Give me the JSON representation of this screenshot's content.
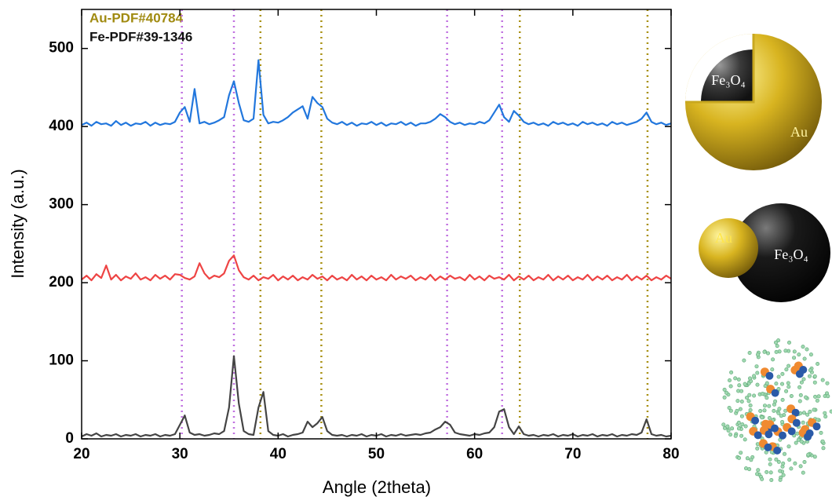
{
  "chart_data": {
    "type": "line",
    "xlabel": "Angle (2theta)",
    "ylabel": "Intensity (a.u.)",
    "xlim": [
      20,
      80
    ],
    "xticks": [
      20,
      30,
      40,
      50,
      60,
      70,
      80
    ],
    "ylim": [
      0,
      550
    ],
    "yticks": [
      0,
      100,
      200,
      300,
      400,
      500
    ],
    "x": [
      20,
      20.5,
      21,
      21.5,
      22,
      22.5,
      23,
      23.5,
      24,
      24.5,
      25,
      25.5,
      26,
      26.5,
      27,
      27.5,
      28,
      28.5,
      29,
      29.5,
      30,
      30.5,
      31,
      31.5,
      32,
      32.5,
      33,
      33.5,
      34,
      34.5,
      35,
      35.5,
      36,
      36.5,
      37,
      37.5,
      38,
      38.5,
      39,
      39.5,
      40,
      40.5,
      41,
      41.5,
      42,
      42.5,
      43,
      43.5,
      44,
      44.5,
      45,
      45.5,
      46,
      46.5,
      47,
      47.5,
      48,
      48.5,
      49,
      49.5,
      50,
      50.5,
      51,
      51.5,
      52,
      52.5,
      53,
      53.5,
      54,
      54.5,
      55,
      55.5,
      56,
      56.5,
      57,
      57.5,
      58,
      58.5,
      59,
      59.5,
      60,
      60.5,
      61,
      61.5,
      62,
      62.5,
      63,
      63.5,
      64,
      64.5,
      65,
      65.5,
      66,
      66.5,
      67,
      67.5,
      68,
      68.5,
      69,
      69.5,
      70,
      70.5,
      71,
      71.5,
      72,
      72.5,
      73,
      73.5,
      74,
      74.5,
      75,
      75.5,
      76,
      76.5,
      77,
      77.5,
      78,
      78.5,
      79,
      79.5,
      80
    ],
    "series": [
      {
        "color": "#444444",
        "values": [
          3,
          6,
          4,
          7,
          3,
          5,
          4,
          6,
          3,
          5,
          4,
          6,
          3,
          5,
          4,
          6,
          3,
          5,
          4,
          6,
          18,
          30,
          8,
          5,
          6,
          4,
          5,
          7,
          6,
          10,
          40,
          106,
          45,
          10,
          6,
          5,
          40,
          60,
          10,
          5,
          4,
          6,
          3,
          5,
          6,
          8,
          22,
          15,
          20,
          28,
          10,
          5,
          4,
          5,
          3,
          5,
          4,
          6,
          3,
          5,
          4,
          6,
          3,
          5,
          4,
          6,
          4,
          5,
          6,
          5,
          7,
          8,
          12,
          15,
          22,
          18,
          8,
          6,
          5,
          4,
          6,
          5,
          7,
          8,
          15,
          35,
          38,
          15,
          6,
          16,
          6,
          4,
          5,
          3,
          5,
          4,
          6,
          3,
          5,
          4,
          6,
          3,
          5,
          4,
          6,
          3,
          5,
          4,
          6,
          3,
          5,
          4,
          6,
          5,
          8,
          25,
          6,
          4,
          5,
          3,
          4
        ]
      },
      {
        "color": "#ee4444",
        "values": [
          204,
          209,
          203,
          211,
          206,
          222,
          204,
          210,
          203,
          208,
          205,
          212,
          204,
          207,
          203,
          210,
          205,
          209,
          204,
          211,
          210,
          206,
          204,
          208,
          225,
          212,
          205,
          209,
          207,
          212,
          228,
          235,
          216,
          207,
          204,
          209,
          203,
          207,
          205,
          210,
          203,
          208,
          204,
          209,
          203,
          207,
          204,
          210,
          205,
          208,
          203,
          209,
          204,
          207,
          203,
          210,
          204,
          208,
          203,
          209,
          204,
          207,
          203,
          210,
          204,
          208,
          205,
          209,
          203,
          207,
          204,
          210,
          203,
          208,
          204,
          209,
          205,
          207,
          203,
          210,
          204,
          208,
          203,
          209,
          205,
          207,
          204,
          210,
          203,
          208,
          204,
          209,
          203,
          207,
          204,
          210,
          203,
          208,
          204,
          209,
          203,
          207,
          204,
          210,
          203,
          208,
          204,
          209,
          203,
          207,
          204,
          210,
          203,
          208,
          204,
          209,
          203,
          207,
          204,
          209,
          205
        ]
      },
      {
        "color": "#2277dd",
        "values": [
          402,
          405,
          401,
          406,
          403,
          404,
          401,
          407,
          402,
          405,
          401,
          404,
          403,
          406,
          401,
          405,
          402,
          404,
          403,
          406,
          418,
          425,
          406,
          448,
          404,
          406,
          403,
          405,
          408,
          412,
          440,
          458,
          430,
          408,
          406,
          410,
          485,
          415,
          404,
          406,
          405,
          408,
          412,
          418,
          422,
          426,
          410,
          438,
          430,
          425,
          410,
          405,
          403,
          406,
          402,
          405,
          401,
          404,
          403,
          406,
          402,
          405,
          401,
          404,
          403,
          406,
          402,
          405,
          401,
          404,
          404,
          406,
          410,
          416,
          412,
          406,
          403,
          405,
          402,
          404,
          403,
          406,
          404,
          408,
          418,
          428,
          412,
          406,
          420,
          414,
          406,
          403,
          405,
          402,
          404,
          401,
          406,
          403,
          405,
          402,
          404,
          401,
          406,
          403,
          405,
          402,
          404,
          401,
          406,
          403,
          405,
          402,
          404,
          406,
          410,
          418,
          406,
          403,
          405,
          402,
          404
        ]
      }
    ],
    "references": [
      {
        "name": "Au-PDF#40784",
        "color": "#a89010",
        "label_color": "#a08a10",
        "positions": [
          38.2,
          44.4,
          64.6,
          77.6
        ]
      },
      {
        "name": "Fe-PDF#39-1346",
        "color": "#c070e0",
        "label_color": "#111111",
        "positions": [
          30.2,
          35.5,
          57.2,
          62.8
        ]
      }
    ]
  },
  "illustrations": [
    {
      "labels": [
        "Fe₃O₄",
        "Au"
      ]
    },
    {
      "labels": [
        "Au",
        "Fe₃O₄"
      ]
    }
  ]
}
